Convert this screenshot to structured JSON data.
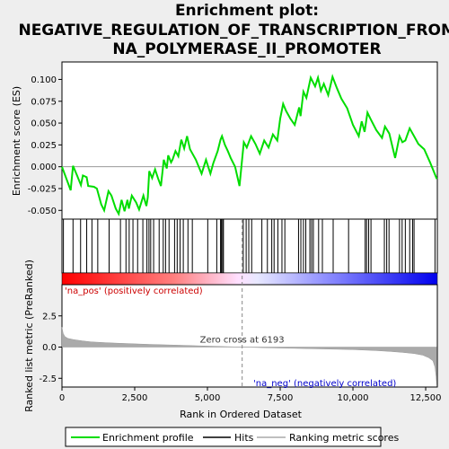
{
  "title_lines": [
    "Enrichment plot:",
    "NEGATIVE_REGULATION_OF_TRANSCRIPTION_FROM_R",
    "NA_POLYMERASE_II_PROMOTER"
  ],
  "chart_data": {
    "type": "line",
    "x_max": 12900,
    "es_panel": {
      "ylabel": "Enrichment score (ES)",
      "ylim": [
        -0.06,
        0.12
      ],
      "yticks": [
        -0.05,
        -0.025,
        0.0,
        0.025,
        0.05,
        0.075,
        0.1
      ],
      "ytick_labels": [
        "-0.050",
        "-0.025",
        "0.000",
        "0.025",
        "0.050",
        "0.075",
        "0.100"
      ],
      "x": [
        0,
        300,
        380,
        520,
        650,
        720,
        850,
        900,
        1100,
        1200,
        1350,
        1450,
        1600,
        1700,
        1850,
        1950,
        2050,
        2150,
        2250,
        2300,
        2400,
        2550,
        2650,
        2800,
        2900,
        2950,
        3000,
        3100,
        3200,
        3300,
        3400,
        3500,
        3600,
        3650,
        3750,
        3800,
        3900,
        4000,
        4100,
        4200,
        4300,
        4400,
        4600,
        4800,
        4950,
        5100,
        5200,
        5350,
        5450,
        5500,
        5600,
        5700,
        5800,
        5950,
        6100,
        6250,
        6350,
        6500,
        6650,
        6800,
        6950,
        7100,
        7250,
        7400,
        7500,
        7600,
        7700,
        7850,
        8000,
        8150,
        8200,
        8300,
        8400,
        8550,
        8700,
        8800,
        8900,
        9000,
        9150,
        9300,
        9450,
        9600,
        9800,
        10000,
        10200,
        10300,
        10400,
        10500,
        10600,
        10800,
        11000,
        11100,
        11250,
        11450,
        11600,
        11700,
        11800,
        11950,
        12100,
        12250,
        12450,
        12650,
        12880
      ],
      "es": [
        0.0,
        -0.027,
        0.001,
        -0.01,
        -0.021,
        -0.01,
        -0.012,
        -0.022,
        -0.023,
        -0.025,
        -0.043,
        -0.05,
        -0.028,
        -0.033,
        -0.048,
        -0.054,
        -0.038,
        -0.051,
        -0.038,
        -0.048,
        -0.033,
        -0.041,
        -0.049,
        -0.033,
        -0.045,
        -0.035,
        -0.005,
        -0.013,
        -0.003,
        -0.013,
        -0.022,
        0.008,
        -0.002,
        0.013,
        0.005,
        0.008,
        0.018,
        0.012,
        0.031,
        0.021,
        0.035,
        0.02,
        0.008,
        -0.008,
        0.008,
        -0.008,
        0.004,
        0.018,
        0.031,
        0.035,
        0.025,
        0.018,
        0.01,
        0.0,
        -0.022,
        0.028,
        0.022,
        0.035,
        0.026,
        0.015,
        0.03,
        0.022,
        0.037,
        0.03,
        0.055,
        0.072,
        0.064,
        0.055,
        0.048,
        0.068,
        0.058,
        0.086,
        0.079,
        0.102,
        0.092,
        0.102,
        0.087,
        0.095,
        0.082,
        0.103,
        0.09,
        0.078,
        0.067,
        0.048,
        0.035,
        0.052,
        0.04,
        0.062,
        0.055,
        0.042,
        0.033,
        0.046,
        0.038,
        0.01,
        0.035,
        0.028,
        0.03,
        0.044,
        0.035,
        0.026,
        0.02,
        0.005,
        -0.014
      ]
    },
    "hits": [
      50,
      380,
      640,
      850,
      1030,
      1230,
      1620,
      2010,
      2200,
      2310,
      2440,
      2600,
      2780,
      2920,
      2990,
      3050,
      3150,
      3340,
      3480,
      3560,
      3680,
      3870,
      3960,
      4060,
      4170,
      4330,
      4480,
      5010,
      5320,
      5450,
      5480,
      5520,
      5550,
      6230,
      6330,
      6420,
      6520,
      6870,
      7060,
      7210,
      7290,
      7420,
      7560,
      7660,
      8130,
      8210,
      8300,
      8380,
      8520,
      8580,
      8640,
      8820,
      8950,
      9320,
      9850,
      10420,
      10470,
      10540,
      10620,
      11080,
      11160,
      11240,
      11600,
      11690,
      11800,
      11950,
      12050,
      12100,
      12820
    ],
    "metric_panel": {
      "ylabel": "Ranked list metric (PreRanked)",
      "ylim": [
        -3.2,
        5.0
      ],
      "yticks": [
        -2.5,
        0.0,
        2.5
      ],
      "ytick_labels": [
        "-2.5",
        "0.0",
        "2.5"
      ],
      "curve_x": [
        0,
        40,
        100,
        200,
        400,
        700,
        1000,
        1500,
        2000,
        3000,
        4000,
        5000,
        6193,
        7000,
        8000,
        9000,
        10000,
        10800,
        11300,
        11700,
        12100,
        12400,
        12600,
        12750,
        12820,
        12860,
        12880
      ],
      "curve_y": [
        1.6,
        1.1,
        0.85,
        0.7,
        0.6,
        0.5,
        0.42,
        0.35,
        0.3,
        0.22,
        0.15,
        0.08,
        0.0,
        -0.05,
        -0.1,
        -0.15,
        -0.2,
        -0.28,
        -0.35,
        -0.42,
        -0.52,
        -0.65,
        -0.85,
        -1.1,
        -1.6,
        -2.4,
        -3.1
      ]
    },
    "zero_cross_rank": 6193,
    "zero_cross_label": "Zero cross at 6193",
    "pos_label": "'na_pos' (positively correlated)",
    "neg_label": "'na_neg' (negatively correlated)",
    "xlabel": "Rank in Ordered Dataset",
    "xticks": [
      0,
      2500,
      5000,
      7500,
      10000,
      12500
    ],
    "xtick_labels": [
      "0",
      "2,500",
      "5,000",
      "7,500",
      "10,000",
      "12,500"
    ],
    "legend": {
      "placement": "bottom",
      "items": [
        "Enrichment profile",
        "Hits",
        "Ranking metric scores"
      ]
    },
    "colors": {
      "es_line": "#00dd00",
      "hit": "#000000",
      "metric": "#aaaaaa",
      "pos_text": "#cc0000",
      "neg_text": "#0000cc",
      "background": "#eeeeee"
    }
  }
}
